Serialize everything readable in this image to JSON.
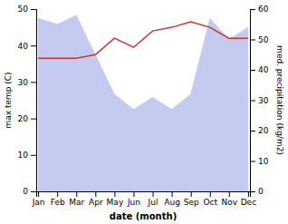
{
  "chart_data": {
    "type": "line",
    "xlabel": "date (month)",
    "ylabel": "max temp (C)",
    "y2label": "med. precipitation (kg/m2)",
    "categories": [
      "Jan",
      "Feb",
      "Mar",
      "Apr",
      "May",
      "Jun",
      "Jul",
      "Aug",
      "Sep",
      "Oct",
      "Nov",
      "Dec"
    ],
    "series": [
      {
        "type": "area",
        "axis": "y2",
        "color": "#c5caf0",
        "values": [
          57,
          55,
          58,
          45,
          32,
          27,
          31,
          27,
          32,
          57,
          50,
          54
        ]
      },
      {
        "type": "line",
        "color": "#cc3333",
        "values": [
          36.5,
          36.5,
          36.5,
          37.5,
          42,
          39.5,
          44,
          45,
          46.5,
          45,
          42,
          42
        ]
      }
    ],
    "ylim": [
      0,
      50
    ],
    "yticks": [
      0,
      10,
      20,
      30,
      40,
      50
    ],
    "y2lim": [
      0,
      60
    ],
    "y2ticks": [
      0,
      10,
      20,
      30,
      40,
      50,
      60
    ]
  }
}
